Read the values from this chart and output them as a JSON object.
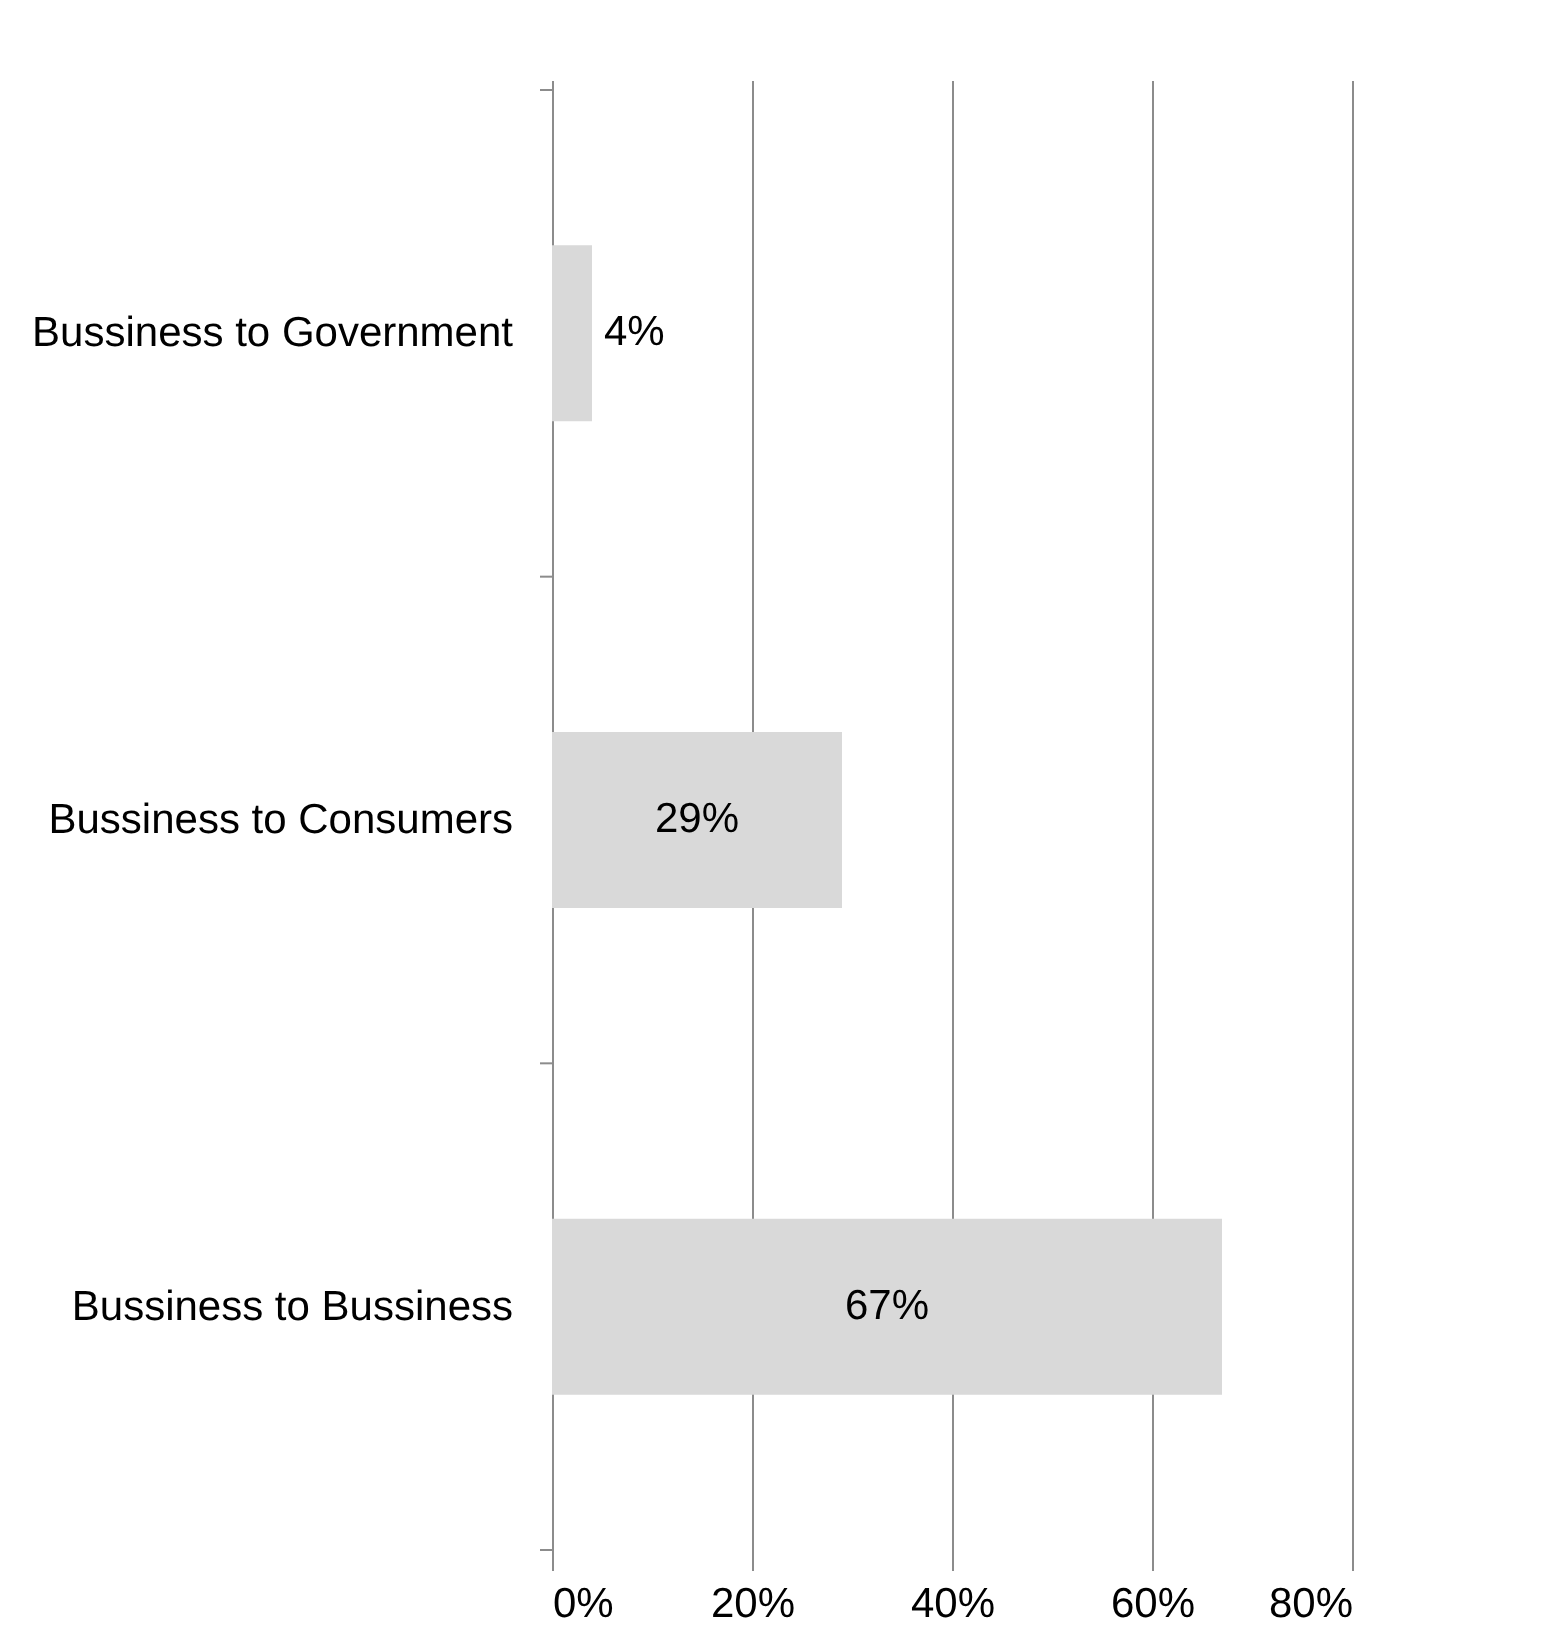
{
  "chart_data": {
    "type": "bar",
    "orientation": "horizontal",
    "categories": [
      "Bussiness to Government",
      "Bussiness to Consumers",
      "Bussiness to Bussiness"
    ],
    "values": [
      4,
      29,
      67
    ],
    "value_labels": [
      "4%",
      "29%",
      "67%"
    ],
    "color": "#d9d9d9",
    "xlim": [
      0,
      80
    ],
    "xticks": [
      {
        "value": 0,
        "label": "0%"
      },
      {
        "value": 20,
        "label": "20%"
      },
      {
        "value": 40,
        "label": "40%"
      },
      {
        "value": 60,
        "label": "60%"
      },
      {
        "value": 80,
        "label": "80%"
      }
    ],
    "grid": "x"
  }
}
